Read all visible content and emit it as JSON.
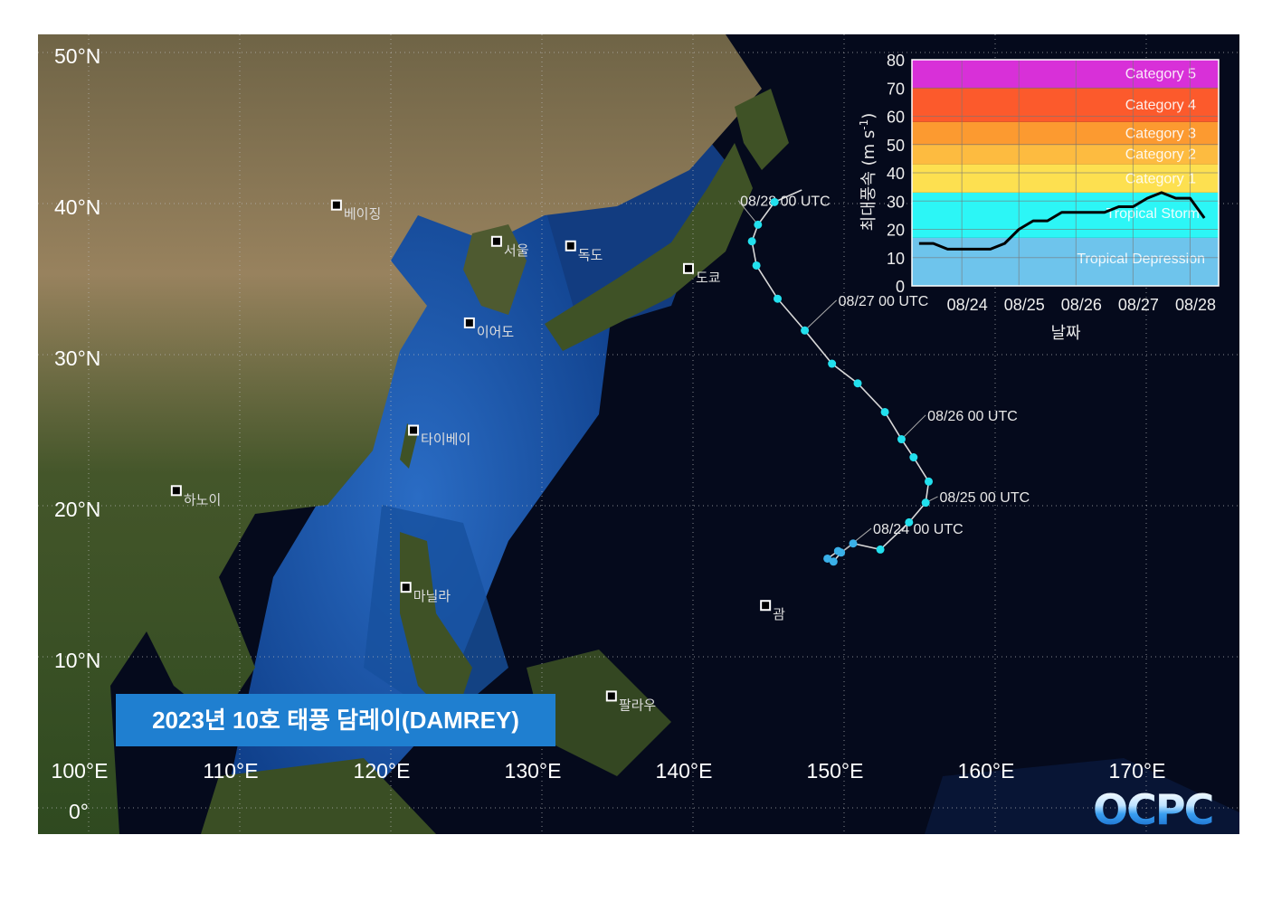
{
  "map": {
    "title": "2023년 10호 태풍 담레이(DAMREY)",
    "logo": "OCPC",
    "lon_labels": [
      "100°E",
      "110°E",
      "120°E",
      "130°E",
      "140°E",
      "150°E",
      "160°E",
      "170°E"
    ],
    "lon_values": [
      100,
      110,
      120,
      130,
      140,
      150,
      160,
      170
    ],
    "lat_labels": [
      "50°N",
      "40°N",
      "30°N",
      "20°N",
      "10°N",
      "0°"
    ],
    "lat_values": [
      50,
      40,
      30,
      20,
      10,
      0
    ],
    "extent": {
      "lon": [
        97,
        176
      ],
      "lat": [
        -1.8,
        51
      ]
    },
    "colors": {
      "track_marker": "#22e0ee",
      "track_line": "#d8d8d8",
      "ocean_shallow": "#1f5fb8",
      "ocean_deep": "#050a1c",
      "land": "#4a5a2c",
      "title_box": "#1f7fd0"
    },
    "cities": [
      {
        "name": "베이징",
        "lon": 116.4,
        "lat": 39.9
      },
      {
        "name": "서울",
        "lon": 127.0,
        "lat": 37.5
      },
      {
        "name": "독도",
        "lon": 131.9,
        "lat": 37.2
      },
      {
        "name": "도쿄",
        "lon": 139.7,
        "lat": 35.7
      },
      {
        "name": "이어도",
        "lon": 125.2,
        "lat": 32.1
      },
      {
        "name": "타이베이",
        "lon": 121.5,
        "lat": 25.0
      },
      {
        "name": "하노이",
        "lon": 105.8,
        "lat": 21.0
      },
      {
        "name": "마닐라",
        "lon": 121.0,
        "lat": 14.6
      },
      {
        "name": "괌",
        "lon": 144.8,
        "lat": 13.4
      },
      {
        "name": "팔라우",
        "lon": 134.6,
        "lat": 7.4
      }
    ],
    "track": [
      {
        "lon": 149.6,
        "lat": 17.0
      },
      {
        "lon": 148.9,
        "lat": 16.5
      },
      {
        "lon": 149.3,
        "lat": 16.3
      },
      {
        "lon": 149.8,
        "lat": 16.9
      },
      {
        "lon": 150.6,
        "lat": 17.5
      },
      {
        "lon": 152.4,
        "lat": 17.1
      },
      {
        "lon": 154.3,
        "lat": 18.9
      },
      {
        "lon": 155.4,
        "lat": 20.2
      },
      {
        "lon": 155.6,
        "lat": 21.6
      },
      {
        "lon": 154.6,
        "lat": 23.2
      },
      {
        "lon": 153.8,
        "lat": 24.4
      },
      {
        "lon": 152.7,
        "lat": 26.2
      },
      {
        "lon": 150.9,
        "lat": 28.1
      },
      {
        "lon": 149.2,
        "lat": 29.4
      },
      {
        "lon": 147.4,
        "lat": 31.6
      },
      {
        "lon": 145.6,
        "lat": 33.7
      },
      {
        "lon": 144.2,
        "lat": 35.9
      },
      {
        "lon": 143.9,
        "lat": 37.5
      },
      {
        "lon": 144.3,
        "lat": 38.6
      },
      {
        "lon": 145.4,
        "lat": 40.1
      }
    ],
    "track_end": {
      "lon": 147.2,
      "lat": 40.9
    },
    "time_labels": [
      {
        "text": "08/24 00 UTC",
        "track_index": 3,
        "lon": 151.8,
        "lat": 18.5
      },
      {
        "text": "08/25 00 UTC",
        "track_index": 7,
        "lon": 156.2,
        "lat": 20.6
      },
      {
        "text": "08/26 00 UTC",
        "track_index": 10,
        "lon": 155.4,
        "lat": 26.0
      },
      {
        "text": "08/27 00 UTC",
        "track_index": 14,
        "lon": 149.5,
        "lat": 33.6
      },
      {
        "text": "08/28 00 UTC",
        "track_index": 18,
        "lon": 143.0,
        "lat": 40.2
      }
    ]
  },
  "chart_data": {
    "type": "line",
    "title": "",
    "xlabel": "날짜",
    "ylabel": "최대풍속 (m s-1)",
    "ylabel_main": "최대풍속 (m s",
    "ylabel_sup": "-1",
    "ylabel_close": ")",
    "ylim": [
      0,
      80
    ],
    "yticks": [
      0,
      10,
      20,
      30,
      40,
      50,
      60,
      70,
      80
    ],
    "xticks": [
      "08/24",
      "08/25",
      "08/26",
      "08/27",
      "08/28"
    ],
    "x_range_days": [
      "08/23 03 UTC",
      "08/28 12 UTC"
    ],
    "x": [
      "08/23 06",
      "08/23 12",
      "08/23 18",
      "08/24 00",
      "08/24 06",
      "08/24 12",
      "08/24 18",
      "08/25 00",
      "08/25 06",
      "08/25 12",
      "08/25 18",
      "08/26 00",
      "08/26 06",
      "08/26 12",
      "08/26 18",
      "08/27 00",
      "08/27 06",
      "08/27 12",
      "08/27 18",
      "08/28 00",
      "08/28 06"
    ],
    "values": [
      15,
      15,
      13,
      13,
      13,
      13,
      15,
      20,
      23,
      23,
      26,
      26,
      26,
      26,
      28,
      28,
      31,
      33,
      31,
      31,
      24
    ],
    "grid": true,
    "line_color": "#000000",
    "bands": [
      {
        "name": "Tropical Depression",
        "from": 0,
        "to": 17,
        "color": "#6ec4ec"
      },
      {
        "name": "Tropical Storm",
        "from": 17,
        "to": 33,
        "color": "#2cf6f6"
      },
      {
        "name": "Category 1",
        "from": 33,
        "to": 43,
        "color": "#fde050"
      },
      {
        "name": "Category 2",
        "from": 43,
        "to": 50,
        "color": "#fdbb40"
      },
      {
        "name": "Category 3",
        "from": 50,
        "to": 58,
        "color": "#fc9a30"
      },
      {
        "name": "Category 4",
        "from": 58,
        "to": 70,
        "color": "#fc5a2c"
      },
      {
        "name": "Category 5",
        "from": 70,
        "to": 80,
        "color": "#d830d8"
      }
    ]
  }
}
